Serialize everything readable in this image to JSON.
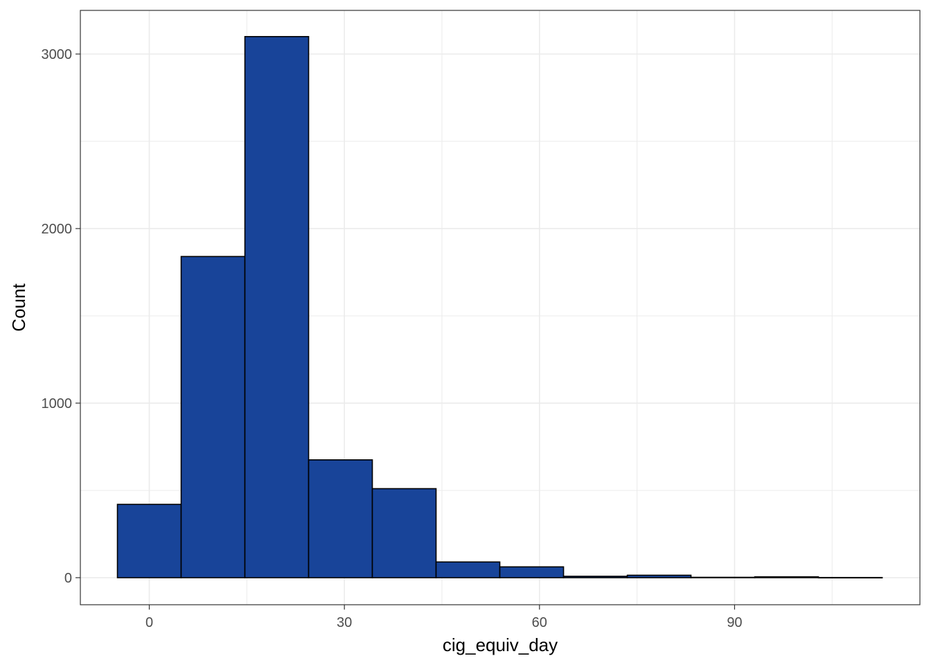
{
  "chart_data": {
    "type": "bar",
    "xlabel": "cig_equiv_day",
    "ylabel": "Count",
    "x_ticks": [
      0,
      30,
      60,
      90
    ],
    "y_ticks": [
      0,
      1000,
      2000,
      3000
    ],
    "xlim": [
      -10.6,
      118.5
    ],
    "ylim": [
      -155,
      3250
    ],
    "bin_width": 9.8,
    "bins": [
      {
        "start": -4.9,
        "end": 4.9,
        "count": 420
      },
      {
        "start": 4.9,
        "end": 14.7,
        "count": 1840
      },
      {
        "start": 14.7,
        "end": 24.5,
        "count": 3100
      },
      {
        "start": 24.5,
        "end": 34.3,
        "count": 675
      },
      {
        "start": 34.3,
        "end": 44.1,
        "count": 510
      },
      {
        "start": 44.1,
        "end": 53.9,
        "count": 90
      },
      {
        "start": 53.9,
        "end": 63.7,
        "count": 62
      },
      {
        "start": 63.7,
        "end": 73.5,
        "count": 8
      },
      {
        "start": 73.5,
        "end": 83.3,
        "count": 14
      },
      {
        "start": 83.3,
        "end": 93.1,
        "count": 2
      },
      {
        "start": 93.1,
        "end": 102.9,
        "count": 5
      },
      {
        "start": 102.9,
        "end": 112.7,
        "count": 1
      }
    ],
    "grid": true,
    "colors": {
      "bar_fill": "#184499",
      "bar_border": "#000000",
      "grid": "#ebebeb",
      "panel_border": "#333333"
    }
  }
}
